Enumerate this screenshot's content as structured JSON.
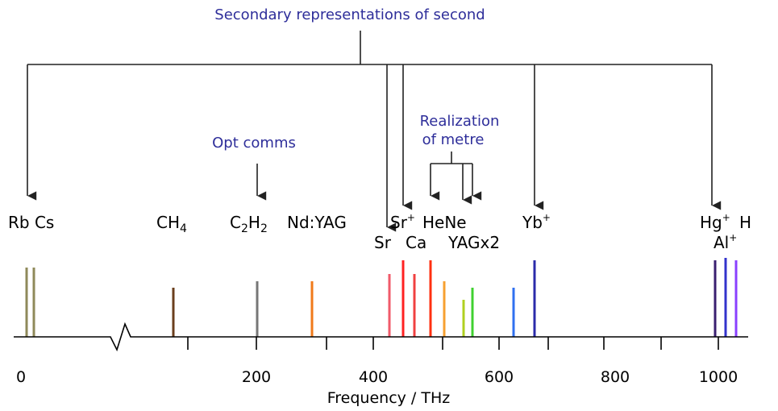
{
  "headings": {
    "secondary": "Secondary representations of second",
    "opt_comms": "Opt comms",
    "realization_line1": "Realization",
    "realization_line2": "of metre"
  },
  "species": {
    "rb_cs": "Rb Cs",
    "ch4_main": "CH",
    "ch4_sub": "4",
    "c2h2_c": "C",
    "c2h2_sub1": "2",
    "c2h2_h": "H",
    "c2h2_sub2": "2",
    "ndyag": "Nd:YAG",
    "sr": "Sr",
    "ca": "Ca",
    "sr_ion_main": "Sr",
    "sr_ion_sup": "+",
    "hene": "HeNe",
    "yagx2": "YAGx2",
    "yb_main": "Yb",
    "yb_sup": "+",
    "hg_main": "Hg",
    "hg_sup": "+",
    "h": "H",
    "al_main": "Al",
    "al_sup": "+"
  },
  "axis": {
    "label": "Frequency / THz",
    "tick_labels": [
      "0",
      "200",
      "400",
      "600",
      "800",
      "1000"
    ]
  },
  "colors": {
    "heading_blue": "#2e2e9a",
    "axis": "#000000",
    "rb_cs": "#8f8a5a",
    "ch4": "#6b3f1e",
    "c2h2": "#777777",
    "ndyag": "#f07a1a",
    "sr": "#f05a6a",
    "sr_ion": "#ff2222",
    "ca": "#f04040",
    "hene": "#ff3010",
    "yag_a": "#f7a030",
    "yag_b": "#b0d020",
    "yag_c": "#40d030",
    "blue_line": "#3070f0",
    "yb": "#2b2baa",
    "hg": "#3a1f70",
    "h": "#3333cc",
    "al": "#8a40ff"
  }
}
